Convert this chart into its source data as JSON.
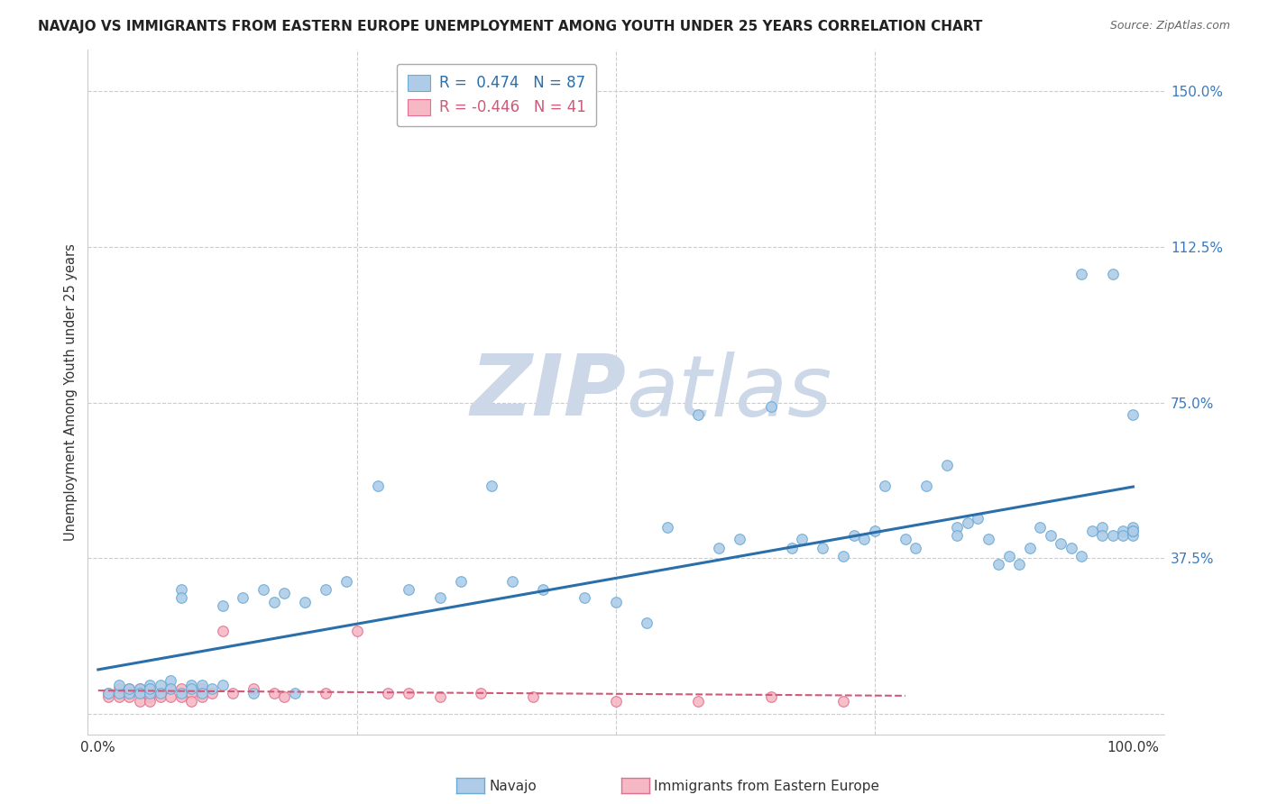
{
  "title": "NAVAJO VS IMMIGRANTS FROM EASTERN EUROPE UNEMPLOYMENT AMONG YOUTH UNDER 25 YEARS CORRELATION CHART",
  "source": "Source: ZipAtlas.com",
  "ylabel": "Unemployment Among Youth under 25 years",
  "navajo_R": 0.474,
  "navajo_N": 87,
  "eastern_R": -0.446,
  "eastern_N": 41,
  "xlim": [
    -0.01,
    1.03
  ],
  "ylim": [
    -0.05,
    1.6
  ],
  "xticks": [
    0.0,
    0.25,
    0.5,
    0.75,
    1.0
  ],
  "xticklabels": [
    "0.0%",
    "",
    "",
    "",
    "100.0%"
  ],
  "ytick_positions": [
    0.0,
    0.375,
    0.75,
    1.125,
    1.5
  ],
  "ytick_labels": [
    "",
    "37.5%",
    "75.0%",
    "112.5%",
    "150.0%"
  ],
  "navajo_color": "#aecce8",
  "navajo_edge_color": "#6aaad4",
  "navajo_line_color": "#2a6faa",
  "eastern_color": "#f5b8c4",
  "eastern_edge_color": "#e07090",
  "eastern_line_color": "#d05878",
  "watermark_color": "#ccd8e8",
  "background_color": "#ffffff",
  "grid_color": "#cccccc",
  "navajo_x": [
    0.01,
    0.02,
    0.02,
    0.03,
    0.03,
    0.04,
    0.04,
    0.05,
    0.05,
    0.05,
    0.06,
    0.06,
    0.07,
    0.07,
    0.08,
    0.08,
    0.08,
    0.09,
    0.09,
    0.1,
    0.1,
    0.11,
    0.12,
    0.12,
    0.14,
    0.15,
    0.16,
    0.17,
    0.18,
    0.19,
    0.2,
    0.22,
    0.24,
    0.27,
    0.3,
    0.33,
    0.35,
    0.38,
    0.4,
    0.43,
    0.47,
    0.5,
    0.53,
    0.55,
    0.58,
    0.6,
    0.62,
    0.65,
    0.67,
    0.68,
    0.7,
    0.72,
    0.73,
    0.74,
    0.75,
    0.76,
    0.78,
    0.79,
    0.8,
    0.82,
    0.83,
    0.83,
    0.84,
    0.85,
    0.86,
    0.87,
    0.88,
    0.89,
    0.9,
    0.91,
    0.92,
    0.93,
    0.94,
    0.95,
    0.95,
    0.96,
    0.97,
    0.97,
    0.98,
    0.98,
    0.99,
    0.99,
    1.0,
    1.0,
    1.0,
    1.0,
    1.0
  ],
  "navajo_y": [
    0.05,
    0.05,
    0.07,
    0.05,
    0.06,
    0.06,
    0.05,
    0.07,
    0.05,
    0.06,
    0.07,
    0.05,
    0.08,
    0.06,
    0.05,
    0.3,
    0.28,
    0.07,
    0.06,
    0.07,
    0.05,
    0.06,
    0.07,
    0.26,
    0.28,
    0.05,
    0.3,
    0.27,
    0.29,
    0.05,
    0.27,
    0.3,
    0.32,
    0.55,
    0.3,
    0.28,
    0.32,
    0.55,
    0.32,
    0.3,
    0.28,
    0.27,
    0.22,
    0.45,
    0.72,
    0.4,
    0.42,
    0.74,
    0.4,
    0.42,
    0.4,
    0.38,
    0.43,
    0.42,
    0.44,
    0.55,
    0.42,
    0.4,
    0.55,
    0.6,
    0.45,
    0.43,
    0.46,
    0.47,
    0.42,
    0.36,
    0.38,
    0.36,
    0.4,
    0.45,
    0.43,
    0.41,
    0.4,
    0.38,
    1.06,
    0.44,
    0.45,
    0.43,
    0.43,
    1.06,
    0.44,
    0.43,
    0.43,
    0.72,
    0.45,
    0.44,
    0.44
  ],
  "eastern_x": [
    0.01,
    0.01,
    0.02,
    0.02,
    0.02,
    0.03,
    0.03,
    0.03,
    0.04,
    0.04,
    0.04,
    0.05,
    0.05,
    0.05,
    0.06,
    0.06,
    0.07,
    0.07,
    0.08,
    0.08,
    0.09,
    0.09,
    0.1,
    0.1,
    0.11,
    0.12,
    0.13,
    0.15,
    0.17,
    0.18,
    0.22,
    0.25,
    0.28,
    0.3,
    0.33,
    0.37,
    0.42,
    0.5,
    0.58,
    0.65,
    0.72
  ],
  "eastern_y": [
    0.05,
    0.04,
    0.06,
    0.05,
    0.04,
    0.06,
    0.05,
    0.04,
    0.06,
    0.05,
    0.03,
    0.06,
    0.04,
    0.03,
    0.05,
    0.04,
    0.06,
    0.04,
    0.06,
    0.04,
    0.05,
    0.03,
    0.06,
    0.04,
    0.05,
    0.2,
    0.05,
    0.06,
    0.05,
    0.04,
    0.05,
    0.2,
    0.05,
    0.05,
    0.04,
    0.05,
    0.04,
    0.03,
    0.03,
    0.04,
    0.03
  ],
  "legend_navajo_label": "R =  0.474   N = 87",
  "legend_eastern_label": "R = -0.446   N = 41",
  "bottom_legend_navajo": "Navajo",
  "bottom_legend_eastern": "Immigrants from Eastern Europe"
}
